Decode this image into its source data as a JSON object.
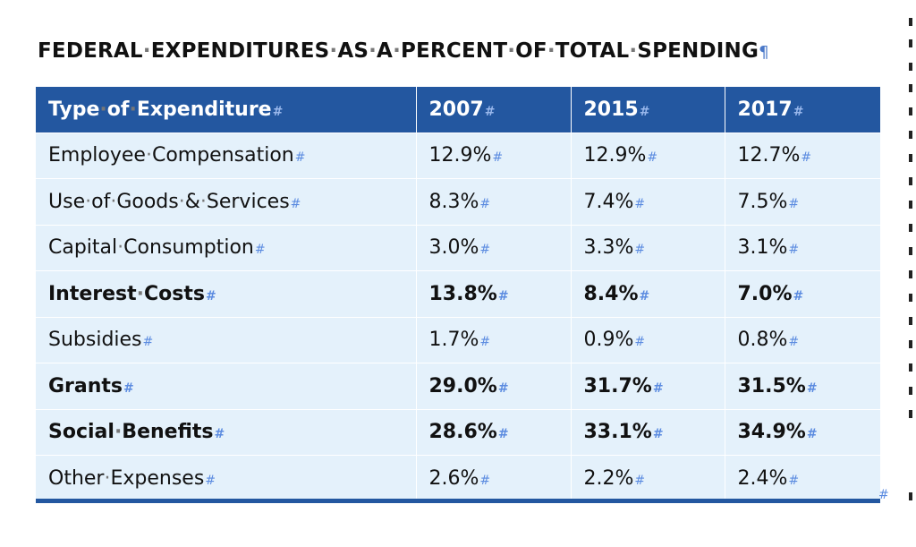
{
  "title": "FEDERAL EXPENDITURES AS A PERCENT OF TOTAL SPENDING",
  "columns": [
    "Type of Expenditure",
    "2007",
    "2015",
    "2017"
  ],
  "rows": [
    {
      "label": "Employee Compensation",
      "v2007": "12.9%",
      "v2015": "12.9%",
      "v2017": "12.7%",
      "bold": false
    },
    {
      "label": "Use of Goods & Services",
      "v2007": "8.3%",
      "v2015": "7.4%",
      "v2017": "7.5%",
      "bold": false
    },
    {
      "label": "Capital Consumption",
      "v2007": "3.0%",
      "v2015": "3.3%",
      "v2017": "3.1%",
      "bold": false
    },
    {
      "label": "Interest Costs",
      "v2007": "13.8%",
      "v2015": "8.4%",
      "v2017": "7.0%",
      "bold": true
    },
    {
      "label": "Subsidies",
      "v2007": "1.7%",
      "v2015": "0.9%",
      "v2017": "0.8%",
      "bold": false
    },
    {
      "label": "Grants",
      "v2007": "29.0%",
      "v2015": "31.7%",
      "v2017": "31.5%",
      "bold": true
    },
    {
      "label": "Social Benefits",
      "v2007": "28.6%",
      "v2015": "33.1%",
      "v2017": "34.9%",
      "bold": true
    },
    {
      "label": "Other Expenses",
      "v2007": "2.6%",
      "v2015": "2.2%",
      "v2017": "2.4%",
      "bold": false
    }
  ],
  "colors": {
    "header_bg": "#2357a0",
    "row_bg": "#e4f1fb",
    "format_mark": "#5b8be0"
  }
}
